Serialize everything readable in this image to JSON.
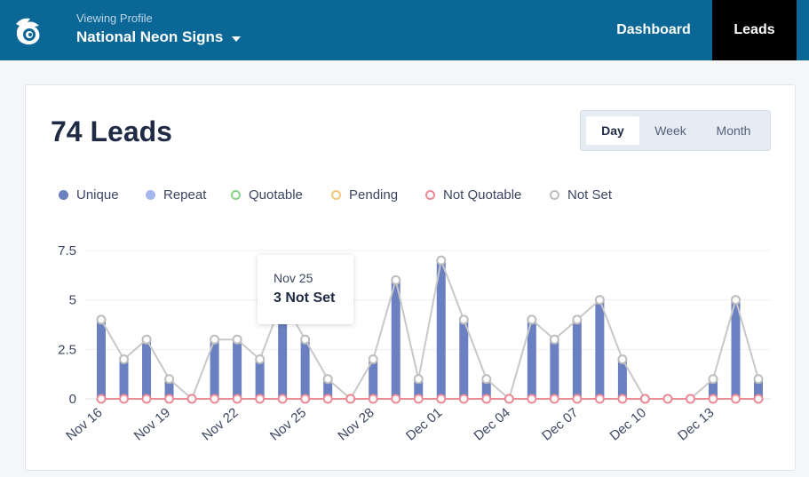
{
  "header": {
    "viewing_label": "Viewing Profile",
    "profile_name": "National Neon Signs",
    "nav": {
      "dashboard": "Dashboard",
      "leads": "Leads"
    }
  },
  "main": {
    "title": "74 Leads",
    "range": {
      "day": "Day",
      "week": "Week",
      "month": "Month",
      "selected": "Day"
    }
  },
  "legend": [
    {
      "label": "Unique",
      "color": "#6a80c0",
      "style": "filled"
    },
    {
      "label": "Repeat",
      "color": "#a4b7ec",
      "style": "filled"
    },
    {
      "label": "Quotable",
      "color": "#8ad18a",
      "style": "ring"
    },
    {
      "label": "Pending",
      "color": "#f3c77a",
      "style": "ring"
    },
    {
      "label": "Not Quotable",
      "color": "#ec8a96",
      "style": "ring"
    },
    {
      "label": "Not Set",
      "color": "#bdbdbd",
      "style": "ring"
    }
  ],
  "tooltip": {
    "date": "Nov 25",
    "value": "3 Not Set"
  },
  "chart_data": {
    "type": "bar",
    "title": "74 Leads",
    "xlabel": "",
    "ylabel": "",
    "ylim": [
      0,
      7.5
    ],
    "yticks": [
      "0",
      "2.5",
      "5",
      "7.5"
    ],
    "grid": true,
    "categories": [
      "Nov 16",
      "Nov 17",
      "Nov 18",
      "Nov 19",
      "Nov 20",
      "Nov 21",
      "Nov 22",
      "Nov 23",
      "Nov 24",
      "Nov 25",
      "Nov 26",
      "Nov 27",
      "Nov 28",
      "Nov 29",
      "Nov 30",
      "Dec 01",
      "Dec 02",
      "Dec 03",
      "Dec 04",
      "Dec 05",
      "Dec 06",
      "Dec 07",
      "Dec 08",
      "Dec 09",
      "Dec 10",
      "Dec 11",
      "Dec 12",
      "Dec 13",
      "Dec 14",
      "Dec 15"
    ],
    "tick_labels": [
      "Nov 16",
      "Nov 19",
      "Nov 22",
      "Nov 25",
      "Nov 28",
      "Dec 01",
      "Dec 04",
      "Dec 07",
      "Dec 10",
      "Dec 13"
    ],
    "series": [
      {
        "name": "Unique",
        "kind": "bar",
        "values": [
          4,
          2,
          3,
          1,
          0,
          3,
          3,
          2,
          5,
          3,
          1,
          0,
          2,
          6,
          1,
          7,
          4,
          1,
          0,
          4,
          3,
          4,
          5,
          2,
          0,
          0,
          0,
          1,
          5,
          1
        ]
      },
      {
        "name": "Not Quotable",
        "kind": "line",
        "values": [
          0,
          0,
          0,
          0,
          0,
          0,
          0,
          0,
          0,
          0,
          0,
          0,
          0,
          0,
          0,
          0,
          0,
          0,
          0,
          0,
          0,
          0,
          0,
          0,
          0,
          0,
          0,
          0,
          0,
          0
        ]
      },
      {
        "name": "Not Set",
        "kind": "line",
        "values": [
          4,
          2,
          3,
          1,
          0,
          3,
          3,
          2,
          5,
          3,
          1,
          0,
          2,
          6,
          1,
          7,
          4,
          1,
          0,
          4,
          3,
          4,
          5,
          2,
          0,
          0,
          0,
          1,
          5,
          1
        ]
      }
    ]
  }
}
